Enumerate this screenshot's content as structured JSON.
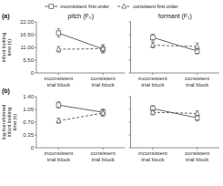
{
  "chart_data": [
    {
      "type": "line",
      "title": "pitch (F₀)",
      "y_label": "infant looking time (s)",
      "categories": [
        "inconsistent trial block",
        "consistent trial block"
      ],
      "series": [
        {
          "name": "inconsistent first order",
          "color": "#666666",
          "marker": "square",
          "line_style": "solid",
          "values": [
            17.2,
            10.3
          ],
          "errors": [
            1.8,
            1.5
          ]
        },
        {
          "name": "consistent first order",
          "color": "#666666",
          "marker": "triangle",
          "line_style": "dashed",
          "values": [
            10.2,
            10.4
          ],
          "errors": [
            1.2,
            1.8
          ]
        }
      ],
      "ylim": [
        0,
        22.0
      ],
      "yticks": [
        0,
        {
          "value": 5.5,
          "label": "5.50"
        },
        {
          "value": 11.0,
          "label": "11.00"
        },
        {
          "value": 16.5,
          "label": "16.50"
        },
        {
          "value": 22.0,
          "label": "22.00"
        }
      ],
      "legend": "top",
      "annotations": [
        "(a)"
      ]
    },
    {
      "type": "line",
      "title": "formant (F₁)",
      "categories": [
        "inconsistent trial block",
        "consistent trial block"
      ],
      "series": [
        {
          "color": "#666666",
          "marker": "square",
          "line_style": "solid",
          "values": [
            15.3,
            9.4
          ],
          "errors": [
            1.5,
            1.2
          ]
        },
        {
          "color": "#666666",
          "marker": "triangle",
          "line_style": "dashed",
          "values": [
            12.0,
            11.4
          ],
          "errors": [
            1.2,
            1.5
          ]
        }
      ],
      "ylim": [
        0,
        22.0
      ],
      "yticks": [
        0,
        5.5,
        11.0,
        16.5,
        22.0
      ],
      "tick_labels": "x"
    },
    {
      "type": "line",
      "y_label": "log-transformed infant looking time (s)",
      "categories": [
        "inconsistent trial block",
        "consistent trial block"
      ],
      "series": [
        {
          "color": "#666666",
          "marker": "square",
          "line_style": "solid",
          "values": [
            1.17,
            0.97
          ],
          "errors": [
            0.09,
            0.09
          ]
        },
        {
          "color": "#666666",
          "marker": "triangle",
          "line_style": "dashed",
          "values": [
            0.74,
            0.95
          ],
          "errors": [
            0.07,
            0.09
          ]
        }
      ],
      "ylim": [
        0,
        1.4
      ],
      "yticks": [
        0,
        0.35,
        {
          "value": 0.7,
          "label": "0.70"
        },
        1.05,
        {
          "value": 1.4,
          "label": "1.40"
        }
      ],
      "annotations": [
        "(b)"
      ]
    },
    {
      "type": "line",
      "categories": [
        "inconsistent trial block",
        "consistent trial block"
      ],
      "series": [
        {
          "color": "#666666",
          "marker": "square",
          "line_style": "solid",
          "values": [
            1.07,
            0.82
          ],
          "errors": [
            0.09,
            0.09
          ]
        },
        {
          "color": "#666666",
          "marker": "triangle",
          "line_style": "dashed",
          "values": [
            0.97,
            0.94
          ],
          "errors": [
            0.07,
            0.07
          ]
        }
      ],
      "ylim": [
        0,
        1.4
      ],
      "yticks": [
        0,
        0.35,
        0.7,
        1.05,
        1.4
      ],
      "tick_labels": "x"
    }
  ]
}
